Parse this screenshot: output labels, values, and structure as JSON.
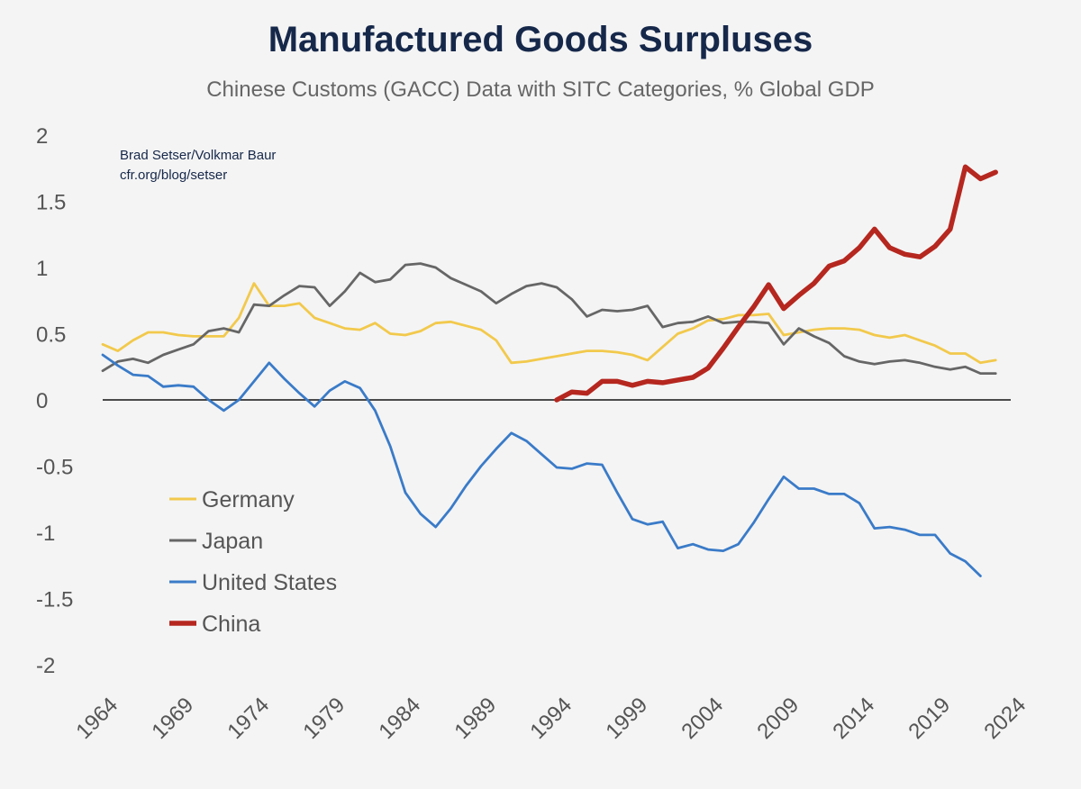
{
  "chart_data": {
    "type": "line",
    "title": "Manufactured Goods Surpluses",
    "subtitle": "Chinese Customs (GACC) Data with SITC Categories, % Global GDP",
    "credit": [
      "Brad Setser/Volkmar Baur",
      "cfr.org/blog/setser"
    ],
    "xlim": [
      1964,
      2024
    ],
    "ylim": [
      -2,
      2
    ],
    "x_ticks": [
      "1964",
      "1969",
      "1974",
      "1979",
      "1984",
      "1989",
      "1994",
      "1999",
      "2004",
      "2009",
      "2014",
      "2019",
      "2024"
    ],
    "y_ticks": [
      "2",
      "1.5",
      "1",
      "0.5",
      "0",
      "-0.5",
      "-1",
      "-1.5",
      "-2"
    ],
    "y_tick_values": [
      2,
      1.5,
      1,
      0.5,
      0,
      -0.5,
      -1,
      -1.5,
      -2
    ],
    "legend_position": "lower-left",
    "series": [
      {
        "name": "Germany",
        "color": "#f2c94c",
        "start": 1964,
        "values": [
          0.42,
          0.37,
          0.45,
          0.51,
          0.51,
          0.49,
          0.48,
          0.48,
          0.48,
          0.62,
          0.88,
          0.71,
          0.71,
          0.73,
          0.62,
          0.58,
          0.54,
          0.53,
          0.58,
          0.5,
          0.49,
          0.52,
          0.58,
          0.59,
          0.56,
          0.53,
          0.45,
          0.28,
          0.29,
          0.31,
          0.33,
          0.35,
          0.37,
          0.37,
          0.36,
          0.34,
          0.3,
          0.4,
          0.5,
          0.54,
          0.6,
          0.61,
          0.64,
          0.64,
          0.65,
          0.49,
          0.51,
          0.53,
          0.54,
          0.54,
          0.53,
          0.49,
          0.47,
          0.49,
          0.45,
          0.41,
          0.35,
          0.35,
          0.28,
          0.3
        ]
      },
      {
        "name": "Japan",
        "color": "#666666",
        "start": 1964,
        "values": [
          0.22,
          0.29,
          0.31,
          0.28,
          0.34,
          0.38,
          0.42,
          0.52,
          0.54,
          0.51,
          0.72,
          0.71,
          0.79,
          0.86,
          0.85,
          0.71,
          0.82,
          0.96,
          0.89,
          0.91,
          1.02,
          1.03,
          1.0,
          0.92,
          0.87,
          0.82,
          0.73,
          0.8,
          0.86,
          0.88,
          0.85,
          0.76,
          0.63,
          0.68,
          0.67,
          0.68,
          0.71,
          0.55,
          0.58,
          0.59,
          0.63,
          0.58,
          0.59,
          0.59,
          0.58,
          0.42,
          0.54,
          0.48,
          0.43,
          0.33,
          0.29,
          0.27,
          0.29,
          0.3,
          0.28,
          0.25,
          0.23,
          0.25,
          0.2,
          0.2
        ]
      },
      {
        "name": "United States",
        "color": "#3a7bc8",
        "start": 1964,
        "values": [
          0.34,
          0.26,
          0.19,
          0.18,
          0.1,
          0.11,
          0.1,
          0.0,
          -0.08,
          0.0,
          0.14,
          0.28,
          0.16,
          0.05,
          -0.05,
          0.07,
          0.14,
          0.09,
          -0.08,
          -0.35,
          -0.7,
          -0.86,
          -0.96,
          -0.82,
          -0.65,
          -0.5,
          -0.37,
          -0.25,
          -0.31,
          -0.41,
          -0.51,
          -0.52,
          -0.48,
          -0.49,
          -0.7,
          -0.9,
          -0.94,
          -0.92,
          -1.12,
          -1.09,
          -1.13,
          -1.14,
          -1.09,
          -0.93,
          -0.75,
          -0.58,
          -0.67,
          -0.67,
          -0.71,
          -0.71,
          -0.78,
          -0.97,
          -0.96,
          -0.98,
          -1.02,
          -1.02,
          -1.16,
          -1.22,
          -1.33
        ]
      },
      {
        "name": "China",
        "color": "#b5271f",
        "start": 1994,
        "values": [
          0.0,
          0.06,
          0.05,
          0.14,
          0.14,
          0.11,
          0.14,
          0.13,
          0.15,
          0.17,
          0.24,
          0.39,
          0.55,
          0.7,
          0.87,
          0.69,
          0.79,
          0.88,
          1.01,
          1.05,
          1.15,
          1.29,
          1.15,
          1.1,
          1.08,
          1.16,
          1.29,
          1.76,
          1.67,
          1.72
        ]
      }
    ]
  }
}
